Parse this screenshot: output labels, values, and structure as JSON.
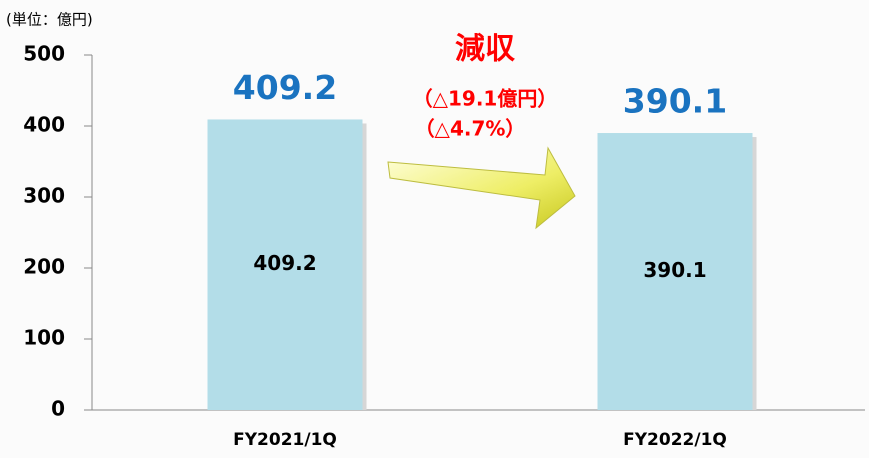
{
  "chart_data": {
    "type": "bar",
    "y_label": "(単位：億円)",
    "categories": [
      "FY2021/1Q",
      "FY2022/1Q"
    ],
    "values": [
      409.2,
      390.1
    ],
    "color": "#b3dde8",
    "value_label_color": "#1a73c0",
    "ylim": [
      0,
      500
    ],
    "yticks": [
      0,
      100,
      200,
      300,
      400,
      500
    ],
    "annotations": [
      "減収",
      "（△19.1億円）",
      "（△4.7%）"
    ],
    "annotation_color": "#ff0000"
  }
}
